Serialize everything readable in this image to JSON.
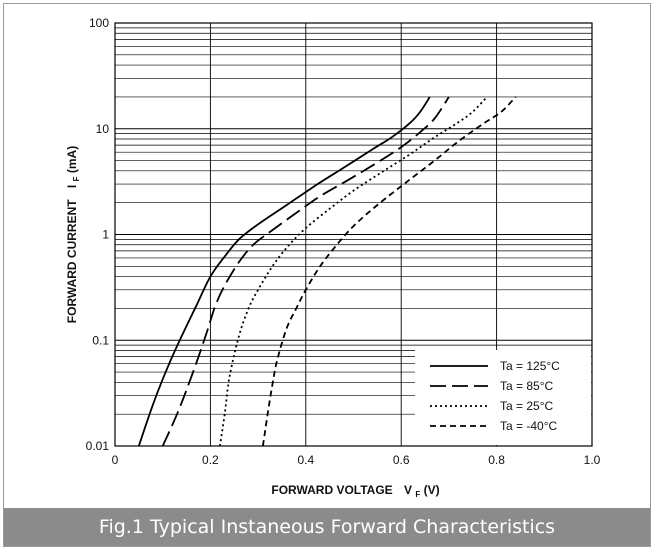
{
  "caption": "Fig.1 Typical Instaneous Forward Characteristics",
  "chart_data": {
    "type": "line",
    "title": "",
    "xlabel": "FORWARD VOLTAGE",
    "xlabel_sym": "V",
    "xlabel_sub": "F",
    "xlabel_unit": "(V)",
    "ylabel": "FORWARD CURRENT",
    "ylabel_sym": "I",
    "ylabel_sub": "F",
    "ylabel_unit": "(mA)",
    "xlim": [
      0,
      1.0
    ],
    "ylim": [
      0.01,
      100
    ],
    "y_scale": "log",
    "x_ticks": [
      0,
      0.2,
      0.4,
      0.6,
      0.8,
      1.0
    ],
    "x_tick_labels": [
      "0",
      "0.2",
      "0.4",
      "0.6",
      "0.8",
      "1.0"
    ],
    "y_ticks": [
      0.01,
      0.1,
      1,
      10,
      100
    ],
    "y_tick_labels": [
      "0.01",
      "0.1",
      "1",
      "10",
      "100"
    ],
    "grid": true,
    "legend_position": "bottom-right",
    "series": [
      {
        "name": "Ta = 125°C",
        "dash": "solid",
        "x": [
          0.05,
          0.08,
          0.11,
          0.14,
          0.17,
          0.2,
          0.23,
          0.26,
          0.3,
          0.36,
          0.42,
          0.48,
          0.54,
          0.58,
          0.62,
          0.64,
          0.66
        ],
        "y": [
          0.01,
          0.025,
          0.055,
          0.11,
          0.21,
          0.4,
          0.62,
          0.9,
          1.25,
          1.9,
          2.9,
          4.3,
          6.4,
          8.3,
          11.5,
          14.5,
          20
        ]
      },
      {
        "name": "Ta = 85°C",
        "dash": "long-dash",
        "x": [
          0.1,
          0.13,
          0.16,
          0.19,
          0.21,
          0.23,
          0.26,
          0.29,
          0.33,
          0.38,
          0.43,
          0.49,
          0.55,
          0.6,
          0.64,
          0.67,
          0.7
        ],
        "y": [
          0.01,
          0.02,
          0.045,
          0.11,
          0.21,
          0.33,
          0.55,
          0.8,
          1.1,
          1.6,
          2.3,
          3.3,
          4.8,
          6.7,
          9.3,
          12.5,
          20
        ]
      },
      {
        "name": "Ta = 25°C",
        "dash": "dotted",
        "x": [
          0.22,
          0.23,
          0.24,
          0.26,
          0.28,
          0.3,
          0.33,
          0.36,
          0.4,
          0.45,
          0.5,
          0.56,
          0.62,
          0.67,
          0.72,
          0.75,
          0.78
        ],
        "y": [
          0.01,
          0.02,
          0.045,
          0.11,
          0.2,
          0.3,
          0.5,
          0.75,
          1.15,
          1.75,
          2.6,
          3.9,
          5.8,
          8.3,
          11.5,
          14.5,
          20
        ]
      },
      {
        "name": "Ta = -40°C",
        "dash": "short-dash",
        "x": [
          0.31,
          0.32,
          0.33,
          0.34,
          0.36,
          0.38,
          0.4,
          0.43,
          0.46,
          0.5,
          0.55,
          0.61,
          0.67,
          0.72,
          0.77,
          0.81,
          0.84
        ],
        "y": [
          0.01,
          0.02,
          0.038,
          0.065,
          0.13,
          0.2,
          0.3,
          0.5,
          0.75,
          1.2,
          1.9,
          3.1,
          5.0,
          7.6,
          11.0,
          14.5,
          20
        ]
      }
    ]
  }
}
